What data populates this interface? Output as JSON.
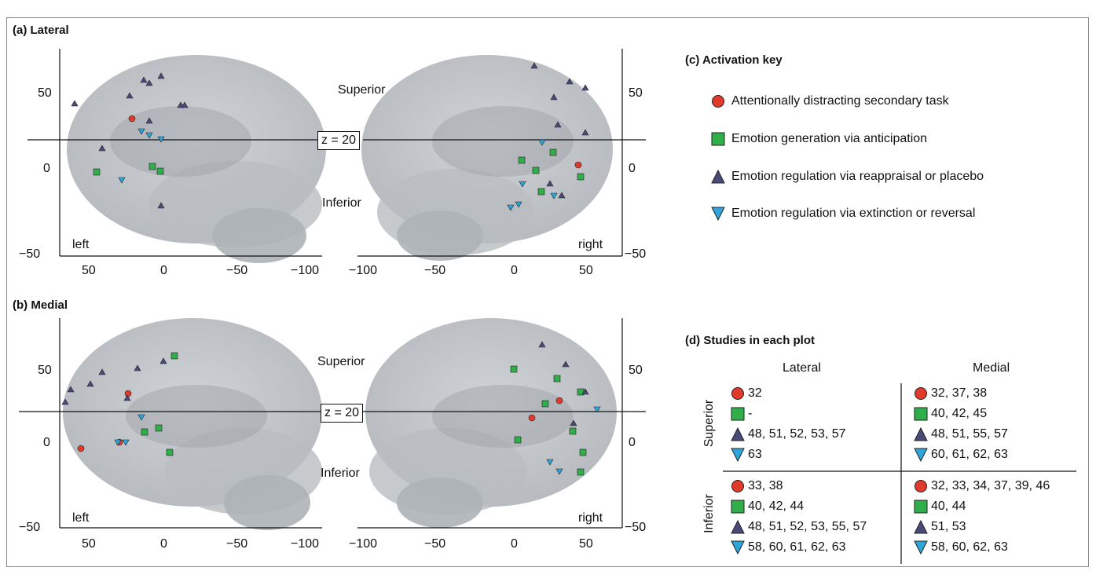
{
  "panels": {
    "a_title": "(a)  Lateral",
    "b_title": "(b)  Medial",
    "c_title": "(c)  Activation key",
    "d_title": "(d)  Studies in each plot"
  },
  "axes": {
    "superior": "Superior",
    "inferior": "Inferior",
    "z_label": "z = 20",
    "left": "left",
    "right": "right",
    "y_ticks_left": [
      "50",
      "0",
      "−50"
    ],
    "y_ticks_right": [
      "50",
      "0",
      "−50"
    ],
    "x_ticks_left": [
      "50",
      "0",
      "−50",
      "−100"
    ],
    "x_ticks_right": [
      "−100",
      "−50",
      "0",
      "50"
    ]
  },
  "key": [
    {
      "symbol": "circle",
      "color": "#e03a2b",
      "label": "Attentionally distracting secondary task"
    },
    {
      "symbol": "square",
      "color": "#2fae4a",
      "label": "Emotion generation via anticipation"
    },
    {
      "symbol": "triangle-up",
      "color": "#4a4a7a",
      "label": "Emotion regulation via reappraisal or placebo"
    },
    {
      "symbol": "triangle-down",
      "color": "#2ea6dc",
      "label": "Emotion regulation via extinction or reversal"
    }
  ],
  "table": {
    "col_lateral": "Lateral",
    "col_medial": "Medial",
    "row_superior": "Superior",
    "row_inferior": "Inferior",
    "superior_lateral": [
      "32",
      "-",
      "48, 51, 52, 53, 57",
      "63"
    ],
    "superior_medial": [
      "32, 37, 38",
      "40, 42, 45",
      "48, 51, 55, 57",
      "60, 61, 62, 63"
    ],
    "inferior_lateral": [
      "33, 38",
      "40, 42, 44",
      "48, 51, 52, 53, 55, 57",
      "58, 60, 61, 62, 63"
    ],
    "inferior_medial": [
      "32, 33, 34, 37, 39, 46",
      "40, 44",
      "51, 53",
      "58, 60, 62, 63"
    ]
  }
}
